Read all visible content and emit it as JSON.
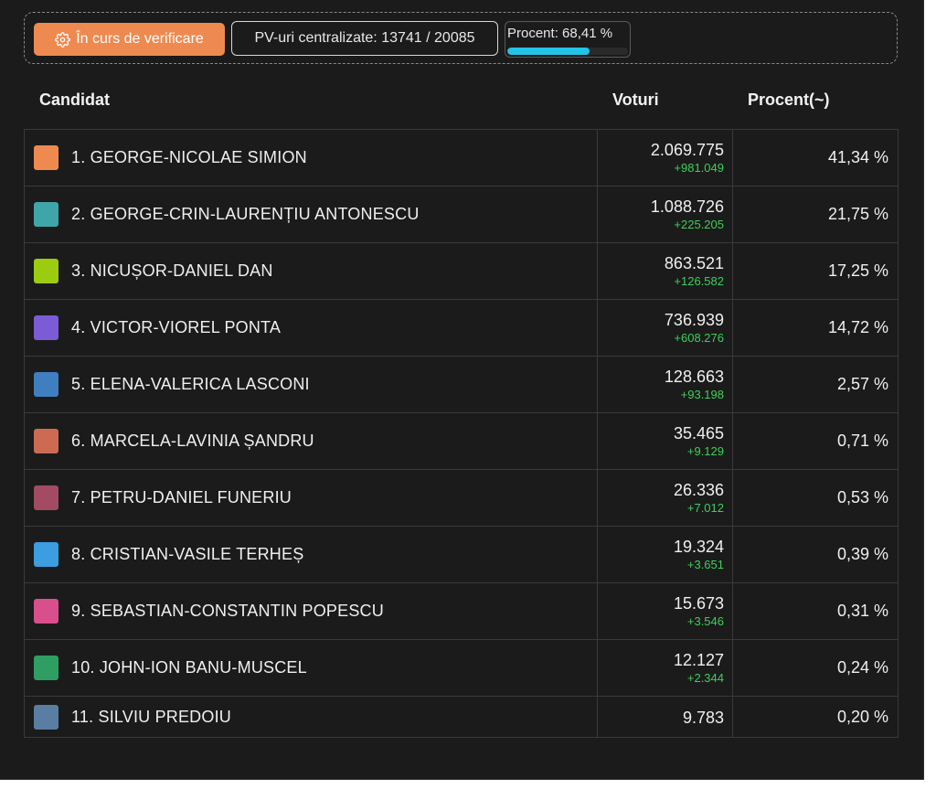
{
  "status": {
    "label": "În curs de verificare",
    "color": "#ee8a4f"
  },
  "pv": {
    "text": "PV-uri centralizate: 13741 / 20085"
  },
  "percent": {
    "text": "Procent: 68,41 %",
    "progress": 0.6841,
    "bar_color": "#22c3e6"
  },
  "table": {
    "headers": {
      "candidate": "Candidat",
      "votes": "Voturi",
      "percent": "Procent(~)"
    },
    "rows": [
      {
        "name": "1. GEORGE-NICOLAE SIMION",
        "color": "#ee8a4f",
        "votes": "2.069.775",
        "delta": "+981.049",
        "percent": "41,34 %"
      },
      {
        "name": "2. GEORGE-CRIN-LAURENȚIU ANTONESCU",
        "color": "#3ea6a9",
        "votes": "1.088.726",
        "delta": "+225.205",
        "percent": "21,75 %"
      },
      {
        "name": "3. NICUȘOR-DANIEL DAN",
        "color": "#9ccc0f",
        "votes": "863.521",
        "delta": "+126.582",
        "percent": "17,25 %"
      },
      {
        "name": "4. VICTOR-VIOREL PONTA",
        "color": "#7b5cd6",
        "votes": "736.939",
        "delta": "+608.276",
        "percent": "14,72 %"
      },
      {
        "name": "5. ELENA-VALERICA LASCONI",
        "color": "#3f7fc0",
        "votes": "128.663",
        "delta": "+93.198",
        "percent": "2,57 %"
      },
      {
        "name": "6. MARCELA-LAVINIA ȘANDRU",
        "color": "#cc6b52",
        "votes": "35.465",
        "delta": "+9.129",
        "percent": "0,71 %"
      },
      {
        "name": "7. PETRU-DANIEL FUNERIU",
        "color": "#a34b63",
        "votes": "26.336",
        "delta": "+7.012",
        "percent": "0,53 %"
      },
      {
        "name": "8. CRISTIAN-VASILE TERHEȘ",
        "color": "#3a9ee0",
        "votes": "19.324",
        "delta": "+3.651",
        "percent": "0,39 %"
      },
      {
        "name": "9. SEBASTIAN-CONSTANTIN POPESCU",
        "color": "#d94f8c",
        "votes": "15.673",
        "delta": "+3.546",
        "percent": "0,31 %"
      },
      {
        "name": "10. JOHN-ION BANU-MUSCEL",
        "color": "#2f9e63",
        "votes": "12.127",
        "delta": "+2.344",
        "percent": "0,24 %"
      },
      {
        "name": "11. SILVIU PREDOIU",
        "color": "#5a7da3",
        "votes": "9.783",
        "delta": "",
        "percent": "0,20 %"
      }
    ]
  }
}
